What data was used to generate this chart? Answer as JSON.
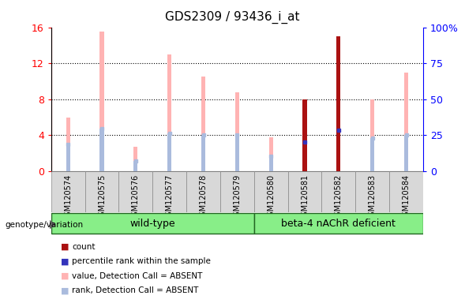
{
  "title": "GDS2309 / 93436_i_at",
  "samples": [
    "GSM120574",
    "GSM120575",
    "GSM120576",
    "GSM120577",
    "GSM120578",
    "GSM120579",
    "GSM120580",
    "GSM120581",
    "GSM120582",
    "GSM120583",
    "GSM120584"
  ],
  "pink_bar": [
    6.0,
    15.5,
    2.7,
    13.0,
    10.5,
    8.8,
    3.8,
    8.0,
    15.0,
    8.0,
    11.0
  ],
  "blue_rank_bar": [
    3.0,
    4.7,
    1.1,
    4.2,
    4.0,
    4.0,
    1.7,
    3.2,
    4.6,
    3.7,
    4.0
  ],
  "dark_red_bar": [
    0,
    0,
    0,
    0,
    0,
    0,
    0,
    8.0,
    15.0,
    0,
    0
  ],
  "dark_red_indices": [
    7,
    8
  ],
  "blue_square_indices": [
    7,
    8
  ],
  "ylim": [
    0,
    16
  ],
  "yticks_left": [
    0,
    4,
    8,
    12,
    16
  ],
  "yticks_right": [
    0,
    25,
    50,
    75,
    100
  ],
  "bar_width": 0.12,
  "pink_color": "#FFB3B3",
  "light_blue_color": "#AABBDD",
  "blue_color": "#3333BB",
  "dark_red_color": "#AA1111",
  "grid_color": "#000000",
  "wild_type_label": "wild-type",
  "beta_label": "beta-4 nAChR deficient",
  "genotype_label": "genotype/variation",
  "wt_count": 6,
  "beta_count": 5,
  "legend_colors": [
    "#AA1111",
    "#3333BB",
    "#FFB3B3",
    "#AABBDD"
  ],
  "legend_labels": [
    "count",
    "percentile rank within the sample",
    "value, Detection Call = ABSENT",
    "rank, Detection Call = ABSENT"
  ],
  "tick_bg_color": "#D0D0D0",
  "group_box_color": "#88EE88",
  "group_box_edge": "#226622"
}
